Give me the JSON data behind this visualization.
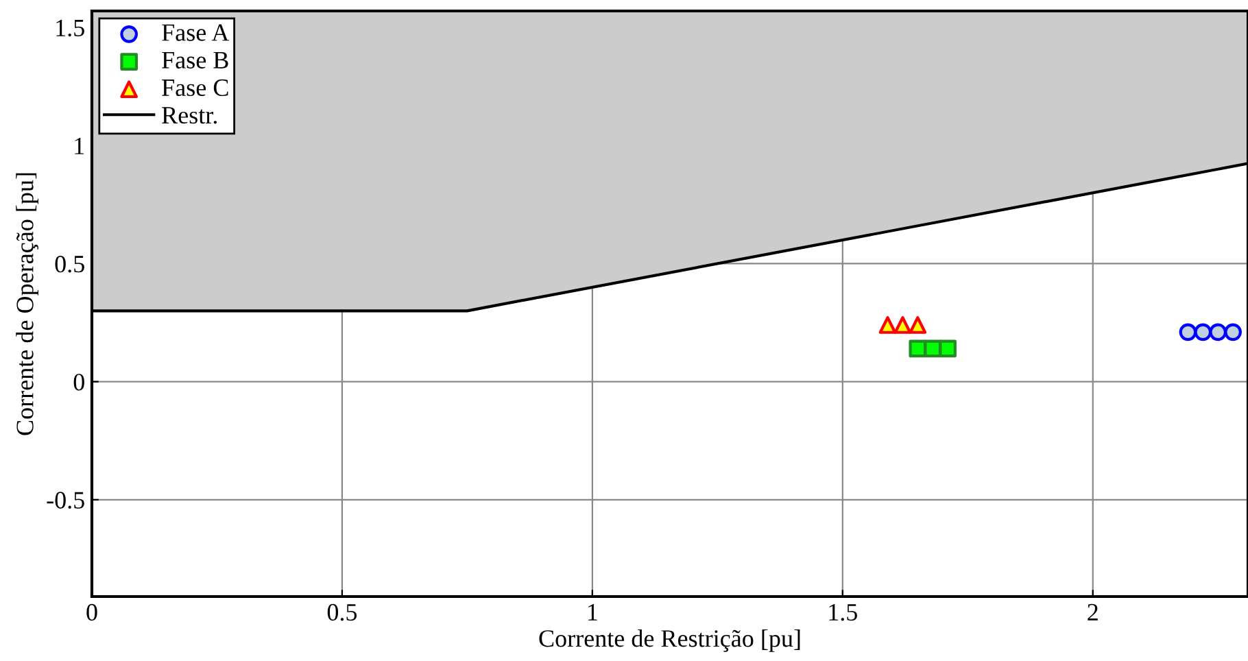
{
  "chart_data": {
    "type": "scatter",
    "xlabel": "Corrente de Restrição [pu]",
    "ylabel": "Corrente de Operação [pu]",
    "xlim": [
      0,
      2.31
    ],
    "ylim": [
      -0.91,
      1.57
    ],
    "xticks": [
      0,
      0.5,
      1,
      1.5,
      2
    ],
    "yticks": [
      -0.5,
      0,
      0.5,
      1,
      1.5
    ],
    "grid": true,
    "legend": "top left",
    "series": [
      {
        "name": "Fase A",
        "marker": "circle",
        "color": "#0000ff",
        "x": [
          2.19,
          2.22,
          2.25,
          2.28
        ],
        "values": [
          0.21,
          0.21,
          0.21,
          0.21
        ]
      },
      {
        "name": "Fase B",
        "marker": "square",
        "color": "#228b22",
        "x": [
          1.65,
          1.68,
          1.71
        ],
        "values": [
          0.14,
          0.14,
          0.14
        ]
      },
      {
        "name": "Fase C",
        "marker": "triangle",
        "color": "#ff0000",
        "x": [
          1.59,
          1.62,
          1.65
        ],
        "values": [
          0.24,
          0.24,
          0.24
        ]
      },
      {
        "name": "Restr.",
        "type": "line",
        "color": "#000000",
        "x": [
          0,
          0.75,
          2.31
        ],
        "values": [
          0.3,
          0.3,
          0.924
        ],
        "lower": [
          0.3,
          0.3,
          0.924
        ],
        "upper": [
          1.57,
          1.57,
          1.57
        ]
      }
    ]
  }
}
